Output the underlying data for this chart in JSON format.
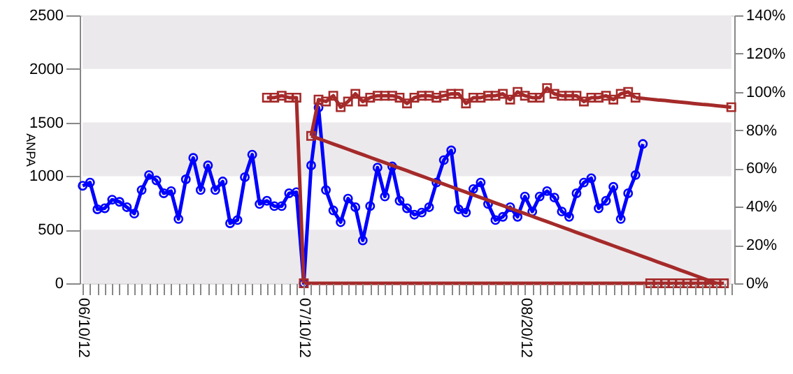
{
  "chart_data": {
    "type": "line",
    "ylabel": "ANPA",
    "categories": [
      "06/10/12",
      null,
      null,
      null,
      null,
      null,
      null,
      null,
      null,
      null,
      null,
      null,
      null,
      null,
      null,
      null,
      null,
      null,
      null,
      null,
      null,
      null,
      null,
      null,
      null,
      null,
      null,
      null,
      null,
      null,
      "07/10/12",
      null,
      null,
      null,
      null,
      null,
      null,
      null,
      null,
      null,
      null,
      null,
      null,
      null,
      null,
      null,
      null,
      null,
      null,
      null,
      null,
      null,
      null,
      null,
      null,
      null,
      null,
      null,
      null,
      null,
      "08/20/12",
      null,
      null,
      null,
      null,
      null,
      null,
      null,
      null,
      null,
      null,
      null,
      null,
      null,
      null,
      null,
      null,
      null,
      null,
      null,
      null,
      null,
      null,
      null,
      null,
      null,
      null,
      null,
      null
    ],
    "ylim": [
      0,
      2500
    ],
    "yticks": [
      0,
      500,
      1000,
      1500,
      2000,
      2500
    ],
    "y2lim": [
      0,
      140
    ],
    "y2ticks": [
      {
        "value": 0,
        "label": "0%"
      },
      {
        "value": 20,
        "label": "20%"
      },
      {
        "value": 40,
        "label": "40%"
      },
      {
        "value": 60,
        "label": "60%"
      },
      {
        "value": 80,
        "label": "80%"
      },
      {
        "value": 100,
        "label": "100%"
      },
      {
        "value": 120,
        "label": "120%"
      },
      {
        "value": 140,
        "label": "140%"
      }
    ],
    "bands": [
      {
        "axis": "y",
        "from": 0,
        "to": 500,
        "color": "#ece9ec"
      },
      {
        "axis": "y",
        "from": 1000,
        "to": 1500,
        "color": "#ece9ec"
      },
      {
        "axis": "y",
        "from": 2000,
        "to": 2500,
        "color": "#ece9ec"
      }
    ],
    "series": [
      {
        "color": "#0000ff",
        "marker": "circle",
        "values": [
          910,
          940,
          690,
          700,
          780,
          760,
          710,
          650,
          870,
          1010,
          960,
          840,
          860,
          600,
          970,
          1170,
          870,
          1100,
          870,
          950,
          560,
          590,
          990,
          1200,
          740,
          770,
          720,
          720,
          840,
          850,
          0,
          1100,
          1640,
          870,
          680,
          570,
          790,
          710,
          400,
          720,
          1080,
          810,
          1090,
          770,
          700,
          640,
          660,
          710,
          940,
          1150,
          1240,
          690,
          660,
          880,
          940,
          740,
          590,
          620,
          710,
          620,
          810,
          670,
          810,
          860,
          800,
          670,
          620,
          840,
          940,
          980,
          700,
          770,
          900,
          600,
          840,
          1010,
          1300,
          null,
          null,
          null,
          null,
          null,
          null,
          null,
          null,
          null,
          null,
          null,
          null
        ]
      },
      {
        "color": "#a52a2a",
        "marker": "square",
        "axis": "y2",
        "values": [
          null,
          null,
          null,
          null,
          null,
          null,
          null,
          null,
          null,
          null,
          null,
          null,
          null,
          null,
          null,
          null,
          null,
          null,
          null,
          null,
          null,
          null,
          null,
          null,
          null,
          97,
          97,
          98,
          97,
          97,
          0,
          null,
          null,
          null,
          null,
          null,
          null,
          null,
          null,
          null,
          null,
          null,
          null,
          null,
          null,
          null,
          null,
          null,
          null,
          null,
          null,
          null,
          null,
          null,
          null,
          null,
          null,
          null,
          null,
          null,
          null,
          null,
          null,
          null,
          null,
          null,
          null,
          null,
          null,
          null,
          null,
          null,
          null,
          null,
          null,
          null,
          null,
          null,
          null,
          null,
          null,
          null,
          null,
          null,
          null,
          null,
          null,
          null,
          null
        ]
      },
      {
        "color": "#a52a2a",
        "marker": "none",
        "axis": "y2",
        "values": [
          null,
          null,
          null,
          null,
          null,
          null,
          null,
          null,
          null,
          null,
          null,
          null,
          null,
          null,
          null,
          null,
          null,
          null,
          null,
          null,
          null,
          null,
          null,
          null,
          null,
          null,
          null,
          null,
          null,
          null,
          0,
          0,
          0,
          0,
          0,
          0,
          0,
          0,
          0,
          0,
          0,
          0,
          0,
          0,
          0,
          0,
          0,
          0,
          0,
          0,
          0,
          0,
          0,
          0,
          0,
          0,
          0,
          0,
          0,
          0,
          0,
          0,
          0,
          0,
          0,
          0,
          0,
          0,
          0,
          0,
          0,
          0,
          0,
          0,
          0,
          0,
          0,
          0,
          0,
          0,
          0,
          0,
          0,
          0,
          0,
          0,
          0,
          0,
          null
        ]
      },
      {
        "type": "scatter",
        "color": "#a52a2a",
        "marker": "square",
        "axis": "y2",
        "values": [
          null,
          null,
          null,
          null,
          null,
          null,
          null,
          null,
          null,
          null,
          null,
          null,
          null,
          null,
          null,
          null,
          null,
          null,
          null,
          null,
          null,
          null,
          null,
          null,
          null,
          null,
          null,
          null,
          null,
          null,
          null,
          null,
          null,
          null,
          null,
          null,
          null,
          null,
          null,
          null,
          null,
          null,
          null,
          null,
          null,
          null,
          null,
          null,
          null,
          null,
          null,
          null,
          null,
          null,
          null,
          null,
          null,
          null,
          null,
          null,
          null,
          null,
          null,
          null,
          null,
          null,
          null,
          null,
          null,
          null,
          null,
          null,
          null,
          null,
          null,
          null,
          null,
          0,
          0,
          0,
          0,
          0,
          0,
          0,
          0,
          0,
          0,
          0,
          null
        ]
      },
      {
        "color": "#a52a2a",
        "marker": "none",
        "axis": "y2",
        "values": [
          null,
          null,
          null,
          null,
          null,
          null,
          null,
          null,
          null,
          null,
          null,
          null,
          null,
          null,
          null,
          null,
          null,
          null,
          null,
          null,
          null,
          null,
          null,
          null,
          null,
          null,
          null,
          null,
          null,
          null,
          null,
          77,
          75.6,
          74.2,
          72.8,
          71.4,
          70,
          68.6,
          67.2,
          65.8,
          64.4,
          63,
          61.6,
          60.2,
          58.8,
          57.4,
          56,
          54.6,
          53.2,
          51.8,
          50.4,
          49,
          47.6,
          46.2,
          44.8,
          43.4,
          42,
          40.6,
          39.2,
          37.8,
          36.4,
          35,
          33.6,
          32.2,
          30.8,
          29.4,
          28,
          26.6,
          25.2,
          23.8,
          22.4,
          21,
          19.6,
          18.2,
          16.8,
          15.4,
          14,
          12.6,
          11.2,
          9.8,
          8.4,
          7,
          5.6,
          4.2,
          2.8,
          1.4,
          0,
          null,
          null
        ]
      },
      {
        "color": "#a52a2a",
        "marker": "none",
        "axis": "y2",
        "values": [
          null,
          null,
          null,
          null,
          null,
          null,
          null,
          null,
          null,
          null,
          null,
          null,
          null,
          null,
          null,
          null,
          null,
          null,
          null,
          null,
          null,
          null,
          null,
          null,
          null,
          null,
          null,
          null,
          null,
          null,
          null,
          null,
          null,
          null,
          null,
          null,
          null,
          null,
          null,
          null,
          null,
          null,
          null,
          null,
          null,
          null,
          null,
          null,
          null,
          null,
          null,
          null,
          null,
          null,
          null,
          null,
          null,
          null,
          null,
          null,
          null,
          null,
          null,
          null,
          null,
          null,
          null,
          null,
          null,
          null,
          null,
          null,
          null,
          null,
          null,
          97,
          96.6,
          96.2,
          95.8,
          95.5,
          95.1,
          94.7,
          94.3,
          93.9,
          93.5,
          93.2,
          92.8,
          92.4,
          92
        ]
      },
      {
        "type": "scatter",
        "color": "#a52a2a",
        "marker": "square",
        "axis": "y2",
        "values": [
          null,
          null,
          null,
          null,
          null,
          null,
          null,
          null,
          null,
          null,
          null,
          null,
          null,
          null,
          null,
          null,
          null,
          null,
          null,
          null,
          null,
          null,
          null,
          null,
          null,
          null,
          null,
          null,
          null,
          null,
          null,
          null,
          null,
          null,
          null,
          null,
          null,
          null,
          null,
          null,
          null,
          null,
          null,
          null,
          null,
          null,
          null,
          null,
          null,
          null,
          null,
          null,
          null,
          null,
          null,
          null,
          null,
          null,
          null,
          null,
          null,
          null,
          null,
          null,
          null,
          null,
          null,
          null,
          null,
          null,
          null,
          null,
          null,
          null,
          null,
          null,
          null,
          null,
          null,
          null,
          null,
          null,
          null,
          null,
          null,
          null,
          null,
          null,
          92
        ]
      },
      {
        "color": "#a52a2a",
        "marker": "square",
        "axis": "y2",
        "values": [
          null,
          null,
          null,
          null,
          null,
          null,
          null,
          null,
          null,
          null,
          null,
          null,
          null,
          null,
          null,
          null,
          null,
          null,
          null,
          null,
          null,
          null,
          null,
          null,
          null,
          null,
          null,
          null,
          null,
          null,
          null,
          77,
          96,
          95,
          98,
          92,
          95,
          99,
          95,
          97,
          98,
          98,
          98,
          97,
          94,
          97,
          98,
          98,
          97,
          98,
          99,
          99,
          94,
          97,
          97,
          98,
          98,
          99,
          96,
          100,
          98,
          97,
          97,
          102,
          99,
          98,
          98,
          98,
          95,
          97,
          97,
          98,
          96,
          99,
          100,
          97,
          null,
          null,
          null,
          null,
          null,
          null,
          null,
          null,
          null,
          null,
          null,
          null,
          null
        ]
      }
    ]
  }
}
